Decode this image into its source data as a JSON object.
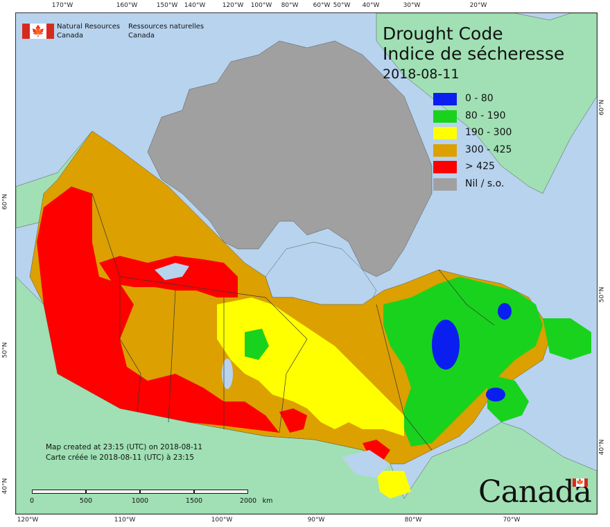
{
  "header": {
    "agency_en_line1": "Natural Resources",
    "agency_en_line2": "Canada",
    "agency_fr_line1": "Ressources naturelles",
    "agency_fr_line2": "Canada",
    "title_en": "Drought Code",
    "title_fr": "Indice de sécheresse",
    "date": "2018-08-11"
  },
  "legend": [
    {
      "label": "0 - 80",
      "color": "#0a1ef0"
    },
    {
      "label": "80 - 190",
      "color": "#19d21e"
    },
    {
      "label": "190 - 300",
      "color": "#ffff00"
    },
    {
      "label": "300 - 425",
      "color": "#dca000"
    },
    {
      "label": "> 425",
      "color": "#ff0000"
    },
    {
      "label": "Nil / s.o.",
      "color": "#a0a0a0"
    }
  ],
  "colors": {
    "ocean": "#b7d3ee",
    "land_other": "#a0e0b4",
    "nil": "#a0a0a0"
  },
  "graticule": {
    "top": [
      "170°W",
      "160°W",
      "150°W",
      "140°W",
      "120°W",
      "100°W",
      "80°W",
      "60°W",
      "50°W",
      "40°W",
      "30°W",
      "20°W"
    ],
    "bottom": [
      "120°W",
      "110°W",
      "100°W",
      "90°W",
      "80°W",
      "70°W"
    ],
    "left": [
      "60°N",
      "50°N",
      "40°N"
    ],
    "right": [
      "60°N",
      "50°N",
      "40°N"
    ]
  },
  "credit": {
    "en": "Map created at 23:15 (UTC) on 2018-08-11",
    "fr": "Carte créée le 2018-08-11 (UTC) à 23:15"
  },
  "scalebar": {
    "labels": [
      "0",
      "500",
      "1000",
      "1500",
      "2000"
    ],
    "unit": "km"
  },
  "wordmark": "Canada"
}
